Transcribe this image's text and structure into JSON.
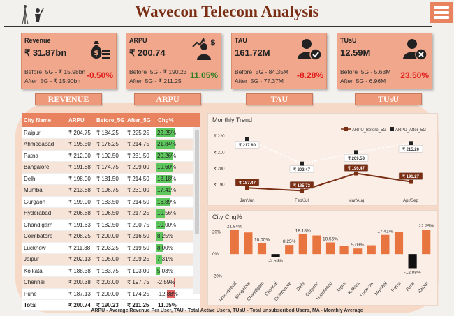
{
  "header": {
    "title": "Wavecon Telecom Analysis"
  },
  "kpis": [
    {
      "label": "Revenue",
      "value": "₹ 31.87bn",
      "before": "Before_5G - ₹ 15.98bn",
      "after": "After_5G - ₹ 15.90bn",
      "change": "-0.50%",
      "change_color": "#e21b1b",
      "icon": "money-bag-icon"
    },
    {
      "label": "ARPU",
      "value": "₹ 200.74",
      "before": "Before_5G - ₹ 190.23",
      "after": "After_5G - ₹ 211.25",
      "change": "11.05%",
      "change_color": "#2e7d1f",
      "icon": "investor-growth-icon"
    },
    {
      "label": "TAU",
      "value": "161.72M",
      "before": "Before_5G - 84.35M",
      "after": "After_5G - 77.37M",
      "change": "-8.28%",
      "change_color": "#e21b1b",
      "icon": "user-check-icon"
    },
    {
      "label": "TUsU",
      "value": "12.59M",
      "before": "Before_5G - 5.63M",
      "after": "After_5G - 6.96M",
      "change": "23.50%",
      "change_color": "#e21b1b",
      "icon": "user-remove-icon"
    }
  ],
  "buttons": [
    "REVENUE",
    "ARPU",
    "TAU",
    "TUsU"
  ],
  "table": {
    "headers": [
      "City Name",
      "ARPU",
      "Before_5G",
      "After_5G",
      "Chg%"
    ],
    "rows": [
      [
        "Raipur",
        "₹ 204.75",
        "₹ 184.25",
        "₹ 225.25",
        "22.25%"
      ],
      [
        "Ahmedabad",
        "₹ 195.50",
        "₹ 176.25",
        "₹ 214.75",
        "21.84%"
      ],
      [
        "Patna",
        "₹ 212.00",
        "₹ 192.50",
        "₹ 231.50",
        "20.26%"
      ],
      [
        "Bangalore",
        "₹ 191.88",
        "₹ 174.75",
        "₹ 209.00",
        "19.60%"
      ],
      [
        "Delhi",
        "₹ 198.00",
        "₹ 181.50",
        "₹ 214.50",
        "18.18%"
      ],
      [
        "Mumbai",
        "₹ 213.88",
        "₹ 196.75",
        "₹ 231.00",
        "17.41%"
      ],
      [
        "Gurgaon",
        "₹ 199.00",
        "₹ 183.50",
        "₹ 214.50",
        "16.89%"
      ],
      [
        "Hyderabad",
        "₹ 206.88",
        "₹ 196.50",
        "₹ 217.25",
        "10.56%"
      ],
      [
        "Chandigarh",
        "₹ 191.63",
        "₹ 182.50",
        "₹ 200.75",
        "10.00%"
      ],
      [
        "Coimbatore",
        "₹ 208.25",
        "₹ 200.00",
        "₹ 216.50",
        "8.25%"
      ],
      [
        "Lucknow",
        "₹ 211.38",
        "₹ 203.25",
        "₹ 219.50",
        "8.00%"
      ],
      [
        "Jaipur",
        "₹ 202.13",
        "₹ 195.00",
        "₹ 209.25",
        "7.31%"
      ],
      [
        "Kolkata",
        "₹ 188.38",
        "₹ 183.75",
        "₹ 193.00",
        "5.03%"
      ],
      [
        "Chennai",
        "₹ 200.38",
        "₹ 203.00",
        "₹ 197.75",
        "-2.59%"
      ],
      [
        "Pune",
        "₹ 187.13",
        "₹ 200.00",
        "₹ 174.25",
        "-12.88%"
      ]
    ],
    "chg_values": [
      22.25,
      21.84,
      20.26,
      19.6,
      18.18,
      17.41,
      16.89,
      10.56,
      10.0,
      8.25,
      8.0,
      7.31,
      5.03,
      -2.59,
      -12.88
    ],
    "total": [
      "Total",
      "₹ 200.74",
      "₹ 190.23",
      "₹ 211.25",
      "11.05%"
    ]
  },
  "chart_data": [
    {
      "type": "line",
      "title": "Monthly Trend",
      "categories": [
        "Jan/Jun",
        "Feb/Jul",
        "Mar/Aug",
        "Apr/Sep"
      ],
      "series": [
        {
          "name": "ARPU_Before_5G",
          "values": [
            187.47,
            185.73,
            196.47,
            191.27
          ],
          "labels": [
            "₹ 187.47",
            "₹ 185.73",
            "₹ 196.47",
            "₹ 191.27"
          ],
          "color": "#7a2e14",
          "style": "solid"
        },
        {
          "name": "ARPU_After_5G",
          "values": [
            217.8,
            202.47,
            209.53,
            215.2
          ],
          "labels": [
            "₹ 217.80",
            "₹ 202.47",
            "₹ 209.53",
            "₹ 215.20"
          ],
          "color": "#ffffff",
          "style": "dotted"
        }
      ],
      "yticks": [
        "₹ 220",
        "₹ 210",
        "₹ 200",
        "₹ 190"
      ],
      "ytick_values": [
        220,
        210,
        200,
        190
      ],
      "ylim": [
        185,
        224
      ],
      "legend": "top-right"
    },
    {
      "type": "bar",
      "title": "City Chg%",
      "categories": [
        "Ahmedabad",
        "Bangalore",
        "Chandigarh",
        "Chennai",
        "Coimbatore",
        "Delhi",
        "Gurgaon",
        "Hyderabad",
        "Jaipur",
        "Kolkata",
        "Lucknow",
        "Mumbai",
        "Patna",
        "Pune",
        "Raipur"
      ],
      "values": [
        21.84,
        19.6,
        10.0,
        -2.59,
        8.25,
        18.18,
        16.89,
        10.56,
        7.31,
        5.03,
        8.0,
        17.41,
        20.26,
        -12.88,
        22.25
      ],
      "labels": [
        "21.84%",
        "",
        "10.00%",
        "-2.59%",
        "8.25%",
        "18.18%",
        "",
        "10.56%",
        "",
        "5.03%",
        "",
        "17.41%",
        "",
        "-12.88%",
        "22.25%"
      ],
      "yticks": [
        "20%",
        "0%",
        "-20%"
      ],
      "ytick_values": [
        20,
        0,
        -20
      ],
      "ylim": [
        -24,
        28
      ],
      "positive_color": "#e8743f",
      "negative_color": "#111111"
    }
  ],
  "footer": "ARPU - Average Revenue Per User, TAU - Total Active Users, TUsU - Total unsubscribed Users, MA - Monthly Average"
}
